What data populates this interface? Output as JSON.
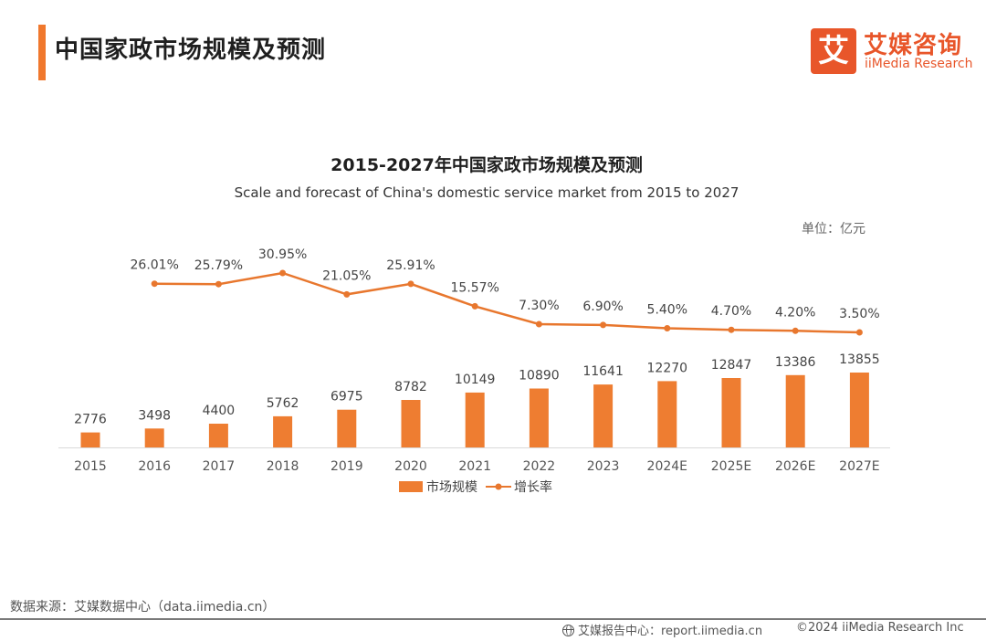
{
  "header": {
    "title": "中国家政市场规模及预测"
  },
  "logo": {
    "mark": "艾",
    "cn": "艾媒咨询",
    "en": "iiMedia Research",
    "color": "#e8562a"
  },
  "colors": {
    "accent": "#f0782d",
    "bar": "#ee7d31",
    "line": "#e8772e"
  },
  "chart_data": {
    "type": "bar",
    "title": "2015-2027年中国家政市场规模及预测",
    "subtitle": "Scale and forecast of China's domestic service market from 2015 to 2027",
    "unit": "单位：亿元",
    "categories": [
      "2015",
      "2016",
      "2017",
      "2018",
      "2019",
      "2020",
      "2021",
      "2022",
      "2023",
      "2024E",
      "2025E",
      "2026E",
      "2027E"
    ],
    "series": [
      {
        "name": "市场规模",
        "type": "bar",
        "values": [
          2776,
          3498,
          4400,
          5762,
          6975,
          8782,
          10149,
          10890,
          11641,
          12270,
          12847,
          13386,
          13855
        ],
        "labels": [
          "2776",
          "3498",
          "4400",
          "5762",
          "6975",
          "8782",
          "10149",
          "10890",
          "11641",
          "12270",
          "12847",
          "13386",
          "13855"
        ]
      },
      {
        "name": "增长率",
        "type": "line",
        "values": [
          null,
          26.01,
          25.79,
          30.95,
          21.05,
          25.91,
          15.57,
          7.3,
          6.9,
          5.4,
          4.7,
          4.2,
          3.5
        ],
        "labels": [
          "",
          "26.01%",
          "25.79%",
          "30.95%",
          "21.05%",
          "25.91%",
          "15.57%",
          "7.30%",
          "6.90%",
          "5.40%",
          "4.70%",
          "4.20%",
          "3.50%"
        ]
      }
    ],
    "grid": false,
    "legend_position": "bottom"
  },
  "footer": {
    "source": "数据来源：艾媒数据中心（data.iimedia.cn）",
    "report": "艾媒报告中心：report.iimedia.cn",
    "copyright": "©2024  iiMedia Research Inc"
  }
}
